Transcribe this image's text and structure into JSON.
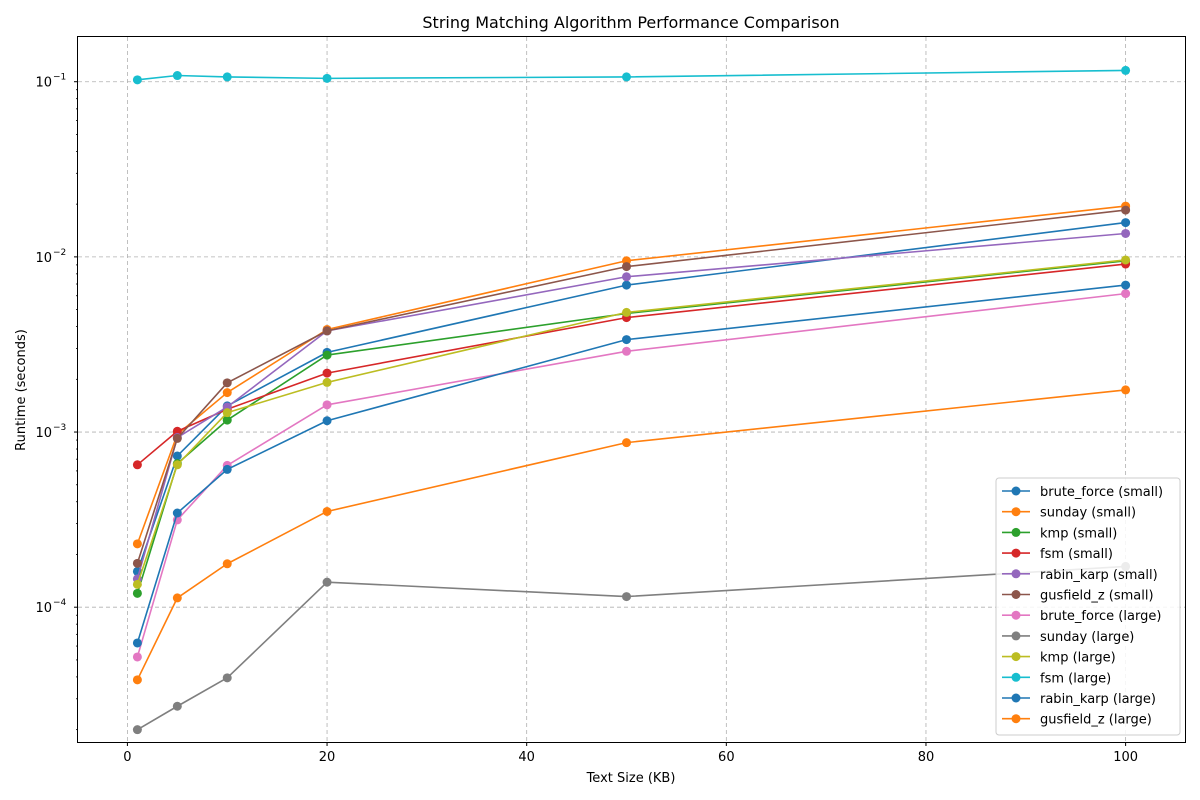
{
  "chart_data": {
    "type": "line",
    "title": "String Matching Algorithm Performance Comparison",
    "xlabel": "Text Size (KB)",
    "ylabel": "Runtime (seconds)",
    "xlim": [
      -4.95,
      105.95
    ],
    "ylim": [
      1.7e-05,
      0.18
    ],
    "yscale": "log",
    "grid": true,
    "legend_position": "lower-right",
    "x_ticks": [
      {
        "value": 0,
        "label": "0"
      },
      {
        "value": 20,
        "label": "20"
      },
      {
        "value": 40,
        "label": "40"
      },
      {
        "value": 60,
        "label": "60"
      },
      {
        "value": 80,
        "label": "80"
      },
      {
        "value": 100,
        "label": "100"
      }
    ],
    "y_ticks": [
      {
        "value": 0.0001,
        "base": "10",
        "exp": "−4"
      },
      {
        "value": 0.001,
        "base": "10",
        "exp": "−3"
      },
      {
        "value": 0.01,
        "base": "10",
        "exp": "−2"
      },
      {
        "value": 0.1,
        "base": "10",
        "exp": "−1"
      }
    ],
    "x": [
      1,
      5,
      10,
      20,
      50,
      100
    ],
    "series": [
      {
        "name": "brute_force (small)",
        "color": "#1f77b4",
        "values": [
          0.00016,
          0.00073,
          0.00141,
          0.00285,
          0.0069,
          0.0157
        ]
      },
      {
        "name": "sunday (small)",
        "color": "#ff7f0e",
        "values": [
          0.00023,
          0.00097,
          0.00168,
          0.00385,
          0.0095,
          0.0195
        ]
      },
      {
        "name": "kmp (small)",
        "color": "#2ca02c",
        "values": [
          0.00012,
          0.00066,
          0.00117,
          0.00275,
          0.00475,
          0.0095
        ]
      },
      {
        "name": "fsm (small)",
        "color": "#d62728",
        "values": [
          0.00065,
          0.00101,
          0.00135,
          0.00217,
          0.0045,
          0.0091
        ]
      },
      {
        "name": "rabin_karp (small)",
        "color": "#9467bd",
        "values": [
          0.000145,
          0.00093,
          0.00139,
          0.00378,
          0.0077,
          0.0136
        ]
      },
      {
        "name": "gusfield_z (small)",
        "color": "#8c564b",
        "values": [
          0.000178,
          0.00092,
          0.00191,
          0.00378,
          0.0088,
          0.0185
        ]
      },
      {
        "name": "brute_force (large)",
        "color": "#e377c2",
        "values": [
          5.2e-05,
          0.000315,
          0.000645,
          0.00143,
          0.00289,
          0.00617
        ]
      },
      {
        "name": "sunday (large)",
        "color": "#7f7f7f",
        "values": [
          2e-05,
          2.72e-05,
          3.95e-05,
          0.000139,
          0.000115,
          0.000171
        ]
      },
      {
        "name": "kmp (large)",
        "color": "#bcbd22",
        "values": [
          0.000135,
          0.00065,
          0.00129,
          0.00192,
          0.00482,
          0.0096
        ]
      },
      {
        "name": "fsm (large)",
        "color": "#17becf",
        "values": [
          0.1025,
          0.1085,
          0.1065,
          0.1045,
          0.1065,
          0.116
        ]
      },
      {
        "name": "rabin_karp (large)",
        "color": "#1f77b4",
        "values": [
          6.25e-05,
          0.000345,
          0.000612,
          0.00116,
          0.00337,
          0.0069
        ]
      },
      {
        "name": "gusfield_z (large)",
        "color": "#ff7f0e",
        "values": [
          3.85e-05,
          0.000113,
          0.000177,
          0.000352,
          0.00087,
          0.00174
        ]
      }
    ]
  }
}
